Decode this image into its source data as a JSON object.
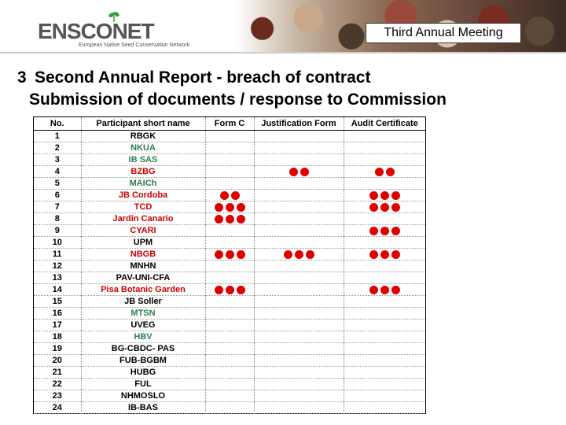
{
  "header": {
    "logo_text": "ENSCONET",
    "logo_subtitle": "European Native Seed Conservation Network",
    "meeting_label": "Third Annual Meeting",
    "colors": {
      "leaf": "#3a9a3a",
      "logo": "#555555"
    }
  },
  "slide": {
    "number": "3",
    "title": "Second Annual Report - breach of contract",
    "subtitle": "Submission of documents / response to Commission"
  },
  "table": {
    "columns": [
      "No.",
      "Participant short name",
      "Form C",
      "Justification Form",
      "Audit Certificate"
    ],
    "colors": {
      "black": "#000000",
      "green": "#2e7d4f",
      "red": "#cc0000",
      "dot": "#e00000"
    },
    "rows": [
      {
        "no": "1",
        "name": "RBGK",
        "color": "black",
        "form_c": 0,
        "justification": 0,
        "audit": 0
      },
      {
        "no": "2",
        "name": "NKUA",
        "color": "green",
        "form_c": 0,
        "justification": 0,
        "audit": 0
      },
      {
        "no": "3",
        "name": "IB SAS",
        "color": "green",
        "form_c": 0,
        "justification": 0,
        "audit": 0
      },
      {
        "no": "4",
        "name": "BZBG",
        "color": "red",
        "form_c": 0,
        "justification": 2,
        "audit": 2
      },
      {
        "no": "5",
        "name": "MAICh",
        "color": "green",
        "form_c": 0,
        "justification": 0,
        "audit": 0
      },
      {
        "no": "6",
        "name": "JB Cordoba",
        "color": "red",
        "form_c": 2,
        "justification": 0,
        "audit": 3
      },
      {
        "no": "7",
        "name": "TCD",
        "color": "red",
        "form_c": 3,
        "justification": 0,
        "audit": 3
      },
      {
        "no": "8",
        "name": "Jardin Canario",
        "color": "red",
        "form_c": 3,
        "justification": 0,
        "audit": 0
      },
      {
        "no": "9",
        "name": "CYARI",
        "color": "red",
        "form_c": 0,
        "justification": 0,
        "audit": 3
      },
      {
        "no": "10",
        "name": "UPM",
        "color": "black",
        "form_c": 0,
        "justification": 0,
        "audit": 0
      },
      {
        "no": "11",
        "name": "NBGB",
        "color": "red",
        "form_c": 3,
        "justification": 3,
        "audit": 3
      },
      {
        "no": "12",
        "name": "MNHN",
        "color": "black",
        "form_c": 0,
        "justification": 0,
        "audit": 0
      },
      {
        "no": "13",
        "name": "PAV-UNI-CFA",
        "color": "black",
        "form_c": 0,
        "justification": 0,
        "audit": 0
      },
      {
        "no": "14",
        "name": "Pisa Botanic Garden",
        "color": "red",
        "form_c": 3,
        "justification": 0,
        "audit": 3
      },
      {
        "no": "15",
        "name": "JB Soller",
        "color": "black",
        "form_c": 0,
        "justification": 0,
        "audit": 0
      },
      {
        "no": "16",
        "name": "MTSN",
        "color": "green",
        "form_c": 0,
        "justification": 0,
        "audit": 0
      },
      {
        "no": "17",
        "name": "UVEG",
        "color": "black",
        "form_c": 0,
        "justification": 0,
        "audit": 0
      },
      {
        "no": "18",
        "name": "HBV",
        "color": "green",
        "form_c": 0,
        "justification": 0,
        "audit": 0
      },
      {
        "no": "19",
        "name": "BG-CBDC- PAS",
        "color": "black",
        "form_c": 0,
        "justification": 0,
        "audit": 0
      },
      {
        "no": "20",
        "name": "FUB-BGBM",
        "color": "black",
        "form_c": 0,
        "justification": 0,
        "audit": 0
      },
      {
        "no": "21",
        "name": "HUBG",
        "color": "black",
        "form_c": 0,
        "justification": 0,
        "audit": 0
      },
      {
        "no": "22",
        "name": "FUL",
        "color": "black",
        "form_c": 0,
        "justification": 0,
        "audit": 0
      },
      {
        "no": "23",
        "name": "NHMOSLO",
        "color": "black",
        "form_c": 0,
        "justification": 0,
        "audit": 0
      },
      {
        "no": "24",
        "name": "IB-BAS",
        "color": "black",
        "form_c": 0,
        "justification": 0,
        "audit": 0
      }
    ]
  }
}
